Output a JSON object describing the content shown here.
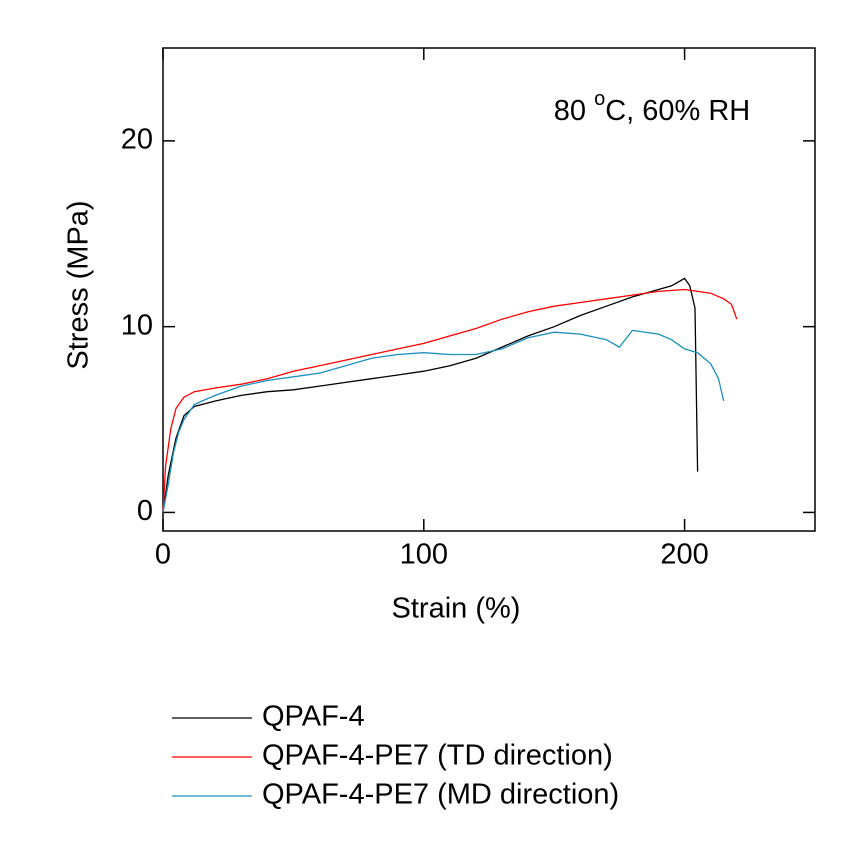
{
  "chart_data": {
    "type": "line",
    "annotation": {
      "text": "80 ",
      "superscript": "o",
      "suffix": "C, 60% RH"
    },
    "x_label": "Strain (%)",
    "y_label": "Stress (MPa)",
    "xlim": [
      0,
      250
    ],
    "ylim": [
      -1,
      25
    ],
    "xticks": [
      0,
      100,
      200
    ],
    "yticks": [
      0,
      10,
      20
    ],
    "series": [
      {
        "name": "QPAF-4",
        "color": "#000000",
        "x": [
          0,
          2,
          5,
          8,
          12,
          20,
          30,
          40,
          50,
          60,
          70,
          80,
          90,
          100,
          110,
          120,
          130,
          140,
          150,
          160,
          170,
          180,
          190,
          195,
          200,
          202,
          204,
          205
        ],
        "values": [
          0,
          2,
          4,
          5.2,
          5.7,
          6,
          6.3,
          6.5,
          6.6,
          6.8,
          7,
          7.2,
          7.4,
          7.6,
          7.9,
          8.3,
          8.9,
          9.5,
          10,
          10.6,
          11.1,
          11.6,
          12,
          12.2,
          12.6,
          12.2,
          11,
          2.2
        ]
      },
      {
        "name": "QPAF-4-PE7 (TD direction)",
        "color": "#ff0000",
        "x": [
          0,
          1,
          3,
          5,
          8,
          12,
          20,
          30,
          40,
          50,
          60,
          70,
          80,
          90,
          100,
          110,
          120,
          130,
          140,
          150,
          160,
          170,
          180,
          190,
          200,
          205,
          210,
          215,
          218,
          220
        ],
        "values": [
          0,
          2.5,
          4.5,
          5.6,
          6.2,
          6.5,
          6.7,
          6.9,
          7.2,
          7.6,
          7.9,
          8.2,
          8.5,
          8.8,
          9.1,
          9.5,
          9.9,
          10.4,
          10.8,
          11.1,
          11.3,
          11.5,
          11.7,
          11.9,
          12,
          11.9,
          11.8,
          11.5,
          11.2,
          10.4
        ]
      },
      {
        "name": "QPAF-4-PE7 (MD direction)",
        "color": "#1a8fc0",
        "x": [
          0,
          2,
          4,
          6,
          8,
          12,
          15,
          20,
          30,
          40,
          50,
          60,
          70,
          80,
          90,
          100,
          110,
          120,
          130,
          140,
          150,
          160,
          170,
          175,
          180,
          190,
          195,
          200,
          205,
          210,
          213,
          215
        ],
        "values": [
          0,
          1.5,
          3.2,
          4.3,
          5,
          5.8,
          6,
          6.3,
          6.8,
          7.1,
          7.3,
          7.5,
          7.9,
          8.3,
          8.5,
          8.6,
          8.5,
          8.5,
          8.8,
          9.4,
          9.7,
          9.6,
          9.3,
          8.9,
          9.8,
          9.6,
          9.3,
          8.8,
          8.6,
          8,
          7.2,
          6
        ]
      }
    ]
  }
}
